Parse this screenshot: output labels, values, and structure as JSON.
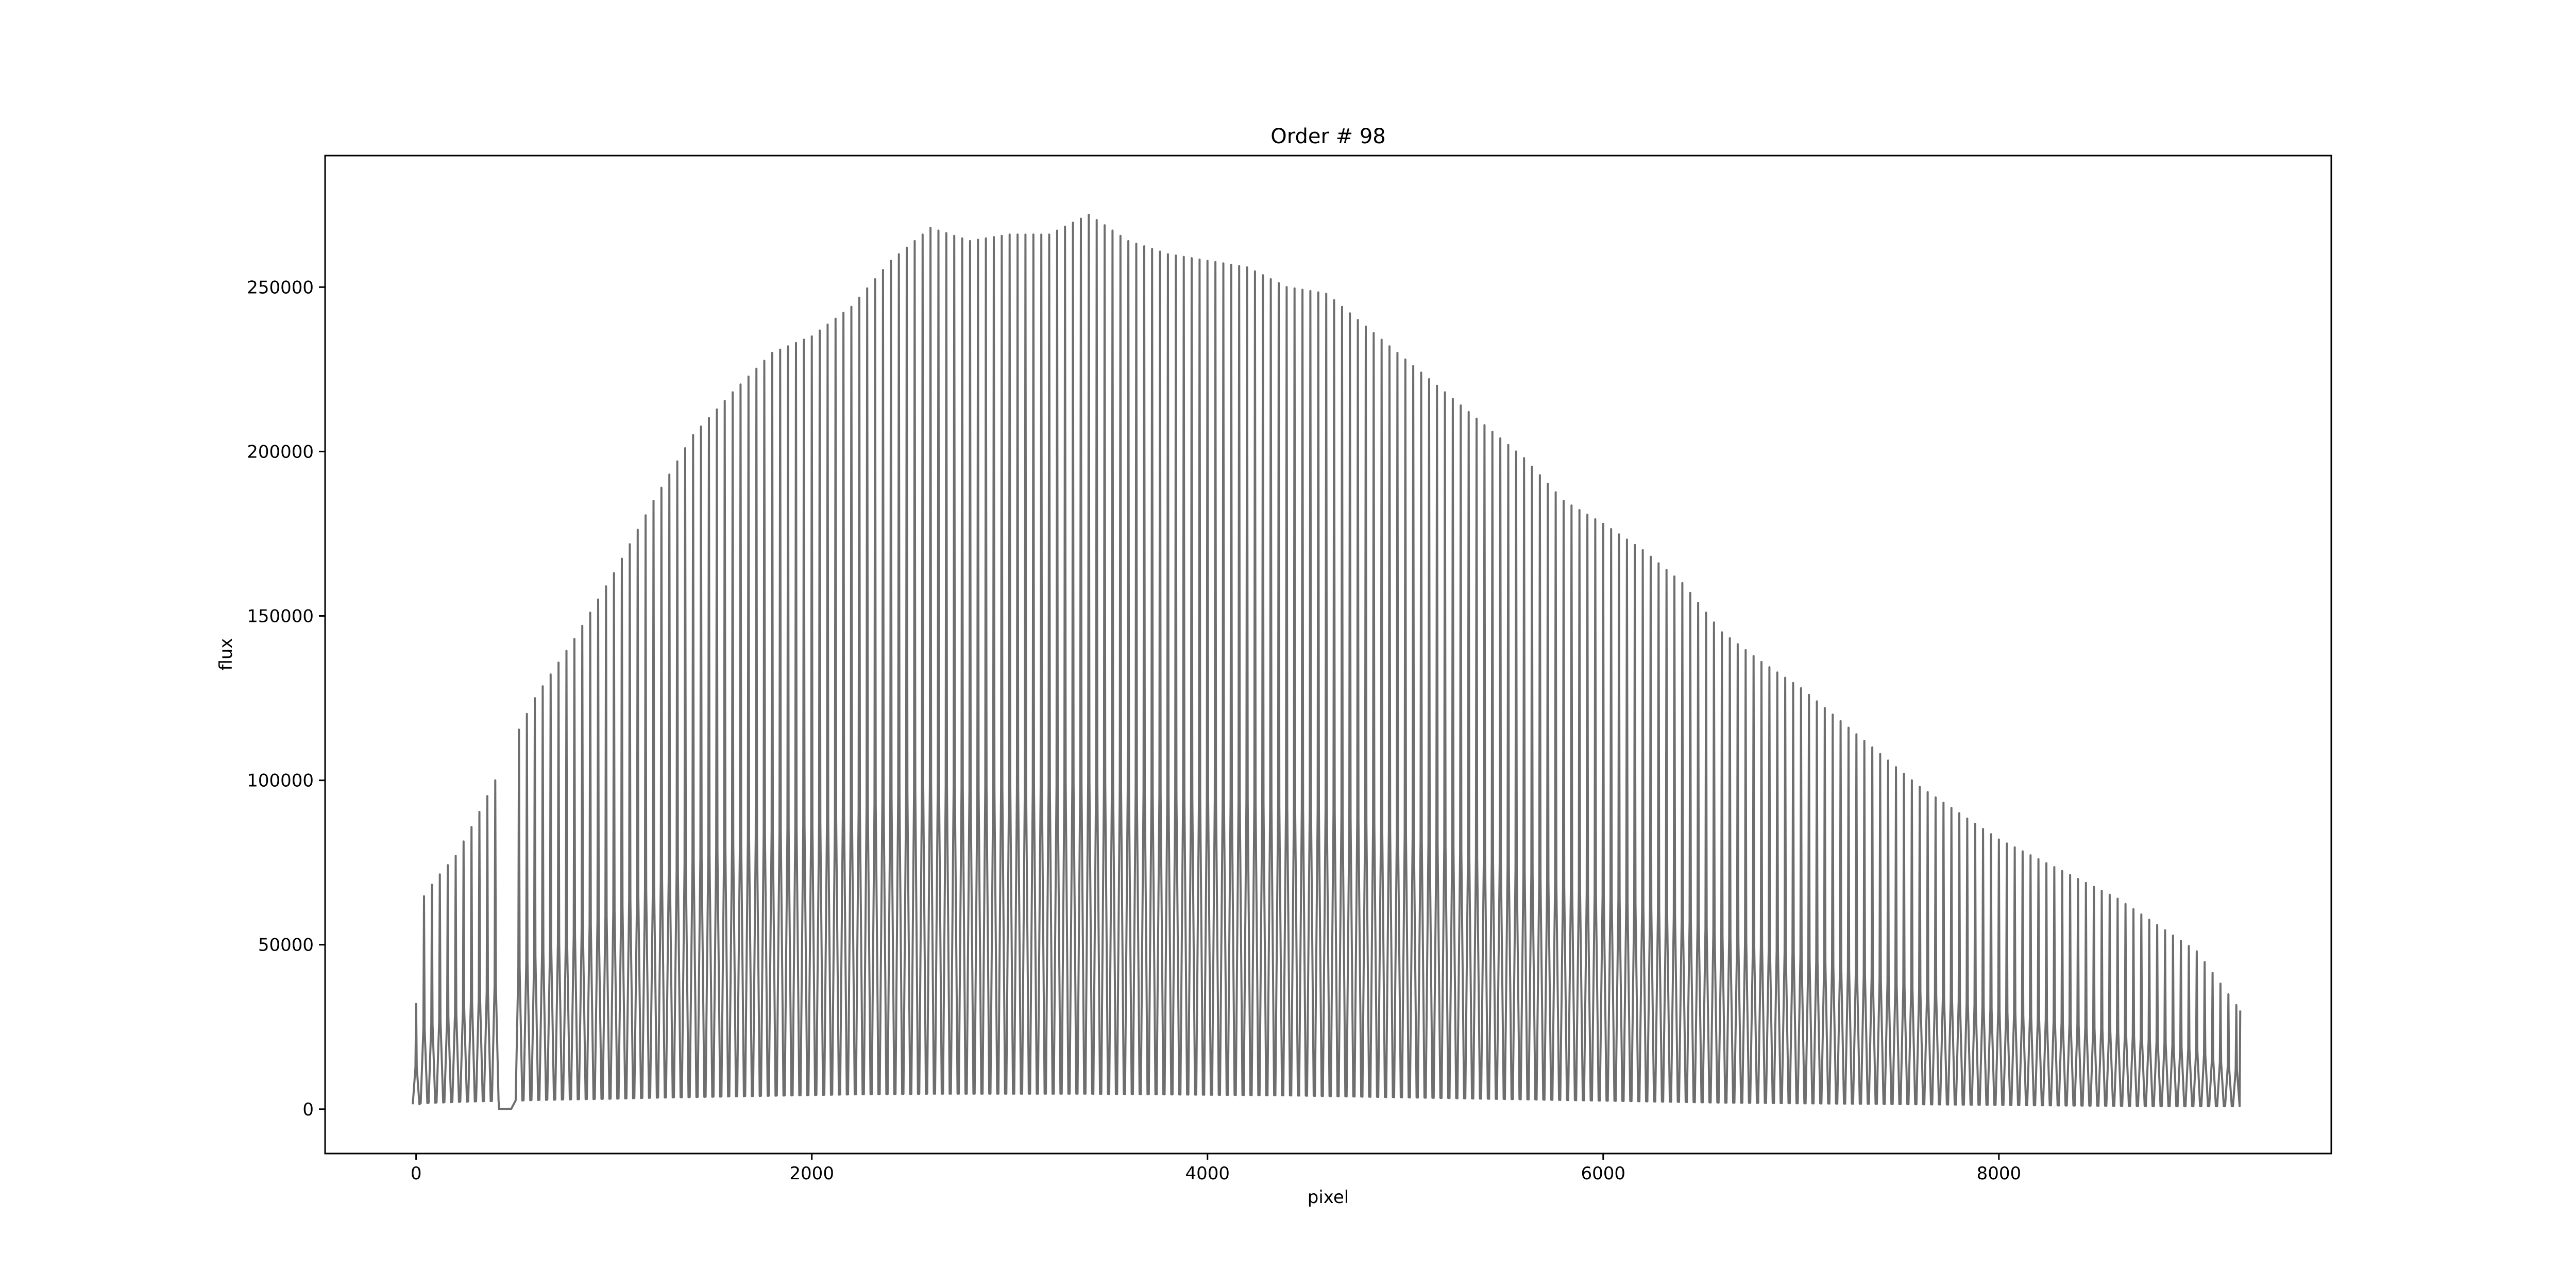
{
  "chart_data": {
    "type": "line",
    "title": "Order # 98",
    "xlabel": "pixel",
    "ylabel": "flux",
    "xlim": [
      -460,
      9680
    ],
    "ylim": [
      -13500,
      290000
    ],
    "x_ticks": [
      0,
      2000,
      4000,
      6000,
      8000
    ],
    "y_ticks": [
      0,
      50000,
      100000,
      150000,
      200000,
      250000
    ],
    "x_tick_labels": [
      "0",
      "2000",
      "4000",
      "6000",
      "8000"
    ],
    "y_tick_labels": [
      "0",
      "50000",
      "100000",
      "150000",
      "200000",
      "250000"
    ],
    "grid": false,
    "legend": "none",
    "series": [
      {
        "color": "#6e6e6e",
        "line_spacing_pixels": 40,
        "x": [
          0,
          20,
          100,
          200,
          300,
          400,
          430,
          450,
          500,
          600,
          800,
          1000,
          1200,
          1400,
          1600,
          1800,
          2000,
          2200,
          2400,
          2600,
          2800,
          3000,
          3200,
          3400,
          3600,
          3800,
          4000,
          4200,
          4400,
          4600,
          4800,
          5000,
          5200,
          5400,
          5600,
          5800,
          6000,
          6200,
          6400,
          6600,
          6800,
          7000,
          7200,
          7400,
          7600,
          7800,
          8000,
          8200,
          8400,
          8600,
          8800,
          9000,
          9220
        ],
        "peak_flux": [
          32000,
          63000,
          70000,
          77000,
          88000,
          100000,
          104000,
          0,
          113000,
          125000,
          143000,
          163000,
          185000,
          205000,
          218000,
          230000,
          235000,
          244000,
          258000,
          268000,
          264000,
          266000,
          266000,
          272000,
          264000,
          260000,
          258000,
          256000,
          250000,
          248000,
          238000,
          228000,
          218000,
          208000,
          198000,
          185000,
          178000,
          170000,
          160000,
          145000,
          136000,
          128000,
          118000,
          108000,
          98000,
          90000,
          82000,
          76000,
          70000,
          64000,
          56000,
          48000,
          30000
        ],
        "baseline_flux": [
          1500,
          1800,
          2000,
          2200,
          2400,
          2500,
          2500,
          0,
          2600,
          2800,
          3000,
          3200,
          3500,
          3700,
          3900,
          4100,
          4300,
          4500,
          4600,
          4700,
          4700,
          4700,
          4700,
          4700,
          4600,
          4500,
          4400,
          4300,
          4200,
          4000,
          3800,
          3600,
          3400,
          3200,
          3000,
          2800,
          2600,
          2400,
          2200,
          2000,
          1900,
          1800,
          1700,
          1600,
          1500,
          1400,
          1300,
          1200,
          1100,
          1000,
          900,
          900,
          900
        ]
      }
    ],
    "gaps": [
      [
        430,
        490
      ]
    ]
  }
}
